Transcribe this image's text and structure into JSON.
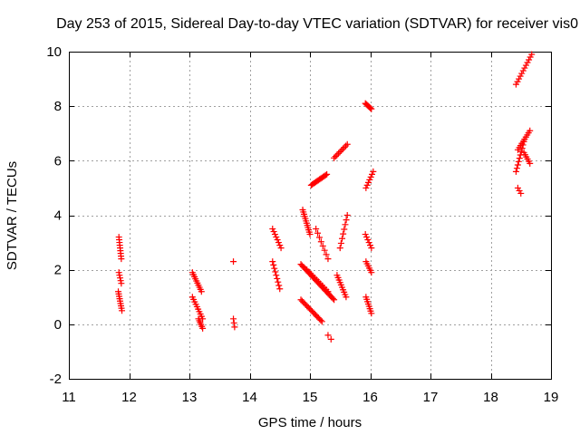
{
  "chart_data": {
    "type": "scatter",
    "title": "Day 253 of 2015, Sidereal Day-to-day VTEC variation (SDTVAR) for receiver vis0",
    "xlabel": "GPS time / hours",
    "ylabel": "SDTVAR / TECUs",
    "xlim": [
      11,
      19
    ],
    "ylim": [
      -2,
      10
    ],
    "grid": true,
    "marker": "+",
    "marker_color": "#ff0000",
    "xticks": [
      "11",
      "12",
      "13",
      "14",
      "15",
      "16",
      "17",
      "18",
      "19"
    ],
    "yticks": [
      "-2",
      "0",
      "2",
      "4",
      "6",
      "8",
      "10"
    ],
    "series": [
      {
        "name": "vis0",
        "x_start": 11.83,
        "x_end": 11.87,
        "y_start": 3.2,
        "y_end": 2.4,
        "n": 9
      },
      {
        "name": "vis0",
        "x_start": 11.83,
        "x_end": 11.87,
        "y_start": 1.9,
        "y_end": 1.5,
        "n": 5
      },
      {
        "name": "vis0",
        "x_start": 11.82,
        "x_end": 11.88,
        "y_start": 1.2,
        "y_end": 0.5,
        "n": 9
      },
      {
        "name": "vis0",
        "x_start": 13.05,
        "x_end": 13.2,
        "y_start": 1.9,
        "y_end": 1.2,
        "n": 10
      },
      {
        "name": "vis0",
        "x_start": 13.05,
        "x_end": 13.22,
        "y_start": 1.0,
        "y_end": 0.2,
        "n": 10
      },
      {
        "name": "vis0",
        "x_start": 13.15,
        "x_end": 13.22,
        "y_start": 0.2,
        "y_end": -0.15,
        "n": 6
      },
      {
        "name": "vis0",
        "x_start": 13.73,
        "x_end": 13.73,
        "y_start": 2.3,
        "y_end": 2.3,
        "n": 1
      },
      {
        "name": "vis0",
        "x_start": 13.73,
        "x_end": 13.75,
        "y_start": 0.2,
        "y_end": -0.1,
        "n": 3
      },
      {
        "name": "vis0",
        "x_start": 14.38,
        "x_end": 14.52,
        "y_start": 3.5,
        "y_end": 2.8,
        "n": 8
      },
      {
        "name": "vis0",
        "x_start": 14.38,
        "x_end": 14.5,
        "y_start": 2.3,
        "y_end": 1.3,
        "n": 9
      },
      {
        "name": "vis0",
        "x_start": 14.88,
        "x_end": 15.0,
        "y_start": 4.2,
        "y_end": 3.3,
        "n": 12
      },
      {
        "name": "vis0",
        "x_start": 15.02,
        "x_end": 15.28,
        "y_start": 5.1,
        "y_end": 5.5,
        "n": 14
      },
      {
        "name": "vis0",
        "x_start": 15.4,
        "x_end": 15.62,
        "y_start": 6.1,
        "y_end": 6.6,
        "n": 10
      },
      {
        "name": "vis0",
        "x_start": 14.85,
        "x_end": 15.4,
        "y_start": 2.2,
        "y_end": 0.9,
        "n": 30
      },
      {
        "name": "vis0",
        "x_start": 14.85,
        "x_end": 15.2,
        "y_start": 0.9,
        "y_end": 0.1,
        "n": 18
      },
      {
        "name": "vis0",
        "x_start": 14.95,
        "x_end": 15.3,
        "y_start": 2.0,
        "y_end": 1.2,
        "n": 12
      },
      {
        "name": "vis0",
        "x_start": 15.1,
        "x_end": 15.3,
        "y_start": 3.5,
        "y_end": 2.4,
        "n": 8
      },
      {
        "name": "vis0",
        "x_start": 15.5,
        "x_end": 15.62,
        "y_start": 2.8,
        "y_end": 4.0,
        "n": 8
      },
      {
        "name": "vis0",
        "x_start": 15.45,
        "x_end": 15.6,
        "y_start": 1.8,
        "y_end": 1.0,
        "n": 10
      },
      {
        "name": "vis0",
        "x_start": 15.3,
        "x_end": 15.35,
        "y_start": -0.4,
        "y_end": -0.55,
        "n": 2
      },
      {
        "name": "vis0",
        "x_start": 15.92,
        "x_end": 16.02,
        "y_start": 8.1,
        "y_end": 7.9,
        "n": 8
      },
      {
        "name": "vis0",
        "x_start": 15.93,
        "x_end": 16.05,
        "y_start": 5.0,
        "y_end": 5.6,
        "n": 7
      },
      {
        "name": "vis0",
        "x_start": 15.92,
        "x_end": 16.02,
        "y_start": 3.3,
        "y_end": 2.8,
        "n": 6
      },
      {
        "name": "vis0",
        "x_start": 15.93,
        "x_end": 16.02,
        "y_start": 2.3,
        "y_end": 1.9,
        "n": 6
      },
      {
        "name": "vis0",
        "x_start": 15.93,
        "x_end": 16.02,
        "y_start": 1.0,
        "y_end": 0.4,
        "n": 8
      },
      {
        "name": "vis0",
        "x_start": 18.42,
        "x_end": 18.68,
        "y_start": 8.8,
        "y_end": 9.9,
        "n": 12
      },
      {
        "name": "vis0",
        "x_start": 18.45,
        "x_end": 18.65,
        "y_start": 6.4,
        "y_end": 7.1,
        "n": 10
      },
      {
        "name": "vis0",
        "x_start": 18.42,
        "x_end": 18.55,
        "y_start": 5.6,
        "y_end": 6.7,
        "n": 10
      },
      {
        "name": "vis0",
        "x_start": 18.55,
        "x_end": 18.65,
        "y_start": 6.3,
        "y_end": 5.9,
        "n": 6
      },
      {
        "name": "vis0",
        "x_start": 18.45,
        "x_end": 18.5,
        "y_start": 5.0,
        "y_end": 4.8,
        "n": 3
      }
    ]
  }
}
